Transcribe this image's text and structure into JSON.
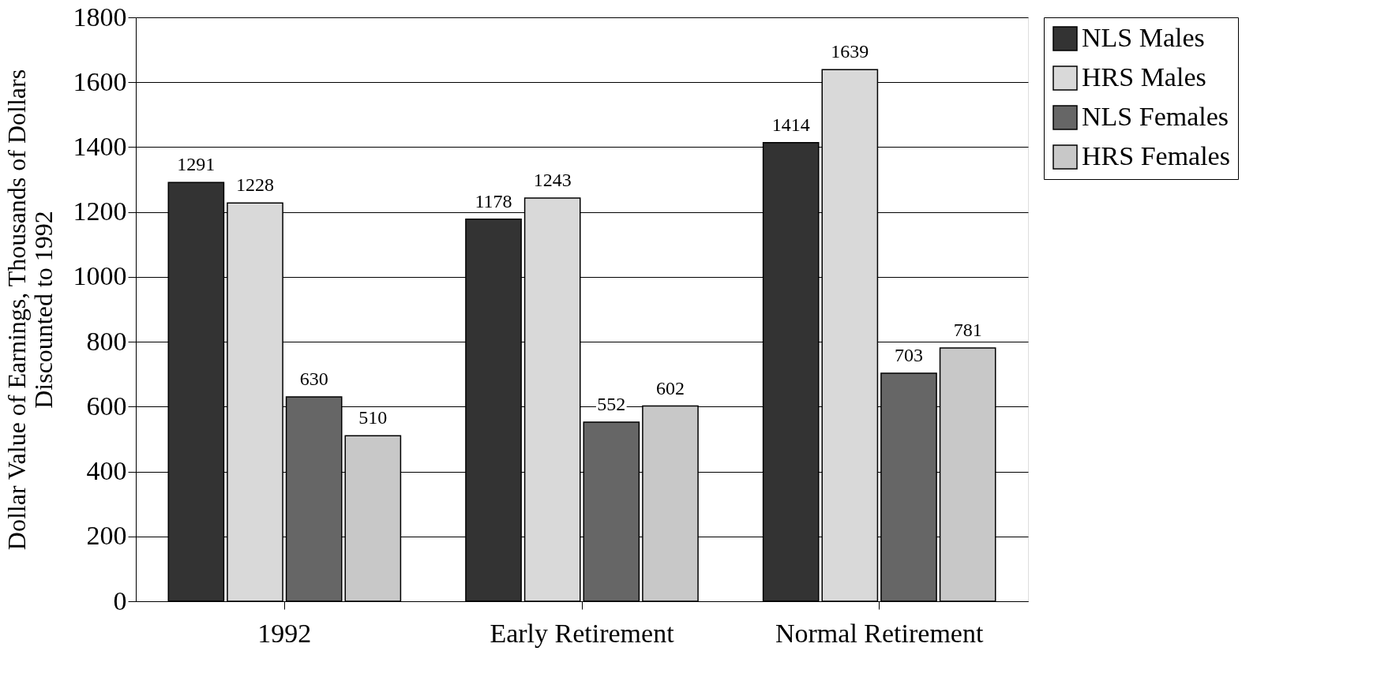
{
  "chart_data": {
    "type": "bar",
    "ylabel": "Dollar Value of Earnings, Thousands of Dollars\nDiscounted to 1992",
    "categories": [
      "1992",
      "Early Retirement",
      "Normal Retirement"
    ],
    "series": [
      {
        "name": "NLS Males",
        "color": "#333333",
        "values": [
          1291,
          1178,
          1414
        ]
      },
      {
        "name": "HRS Males",
        "color": "#d9d9d9",
        "values": [
          1228,
          1243,
          1639
        ]
      },
      {
        "name": "NLS Females",
        "color": "#666666",
        "values": [
          630,
          552,
          703
        ]
      },
      {
        "name": "HRS Females",
        "color": "#c8c8c8",
        "values": [
          510,
          602,
          781
        ]
      }
    ],
    "ylim": [
      0,
      1800
    ],
    "yticks": [
      0,
      200,
      400,
      600,
      800,
      1000,
      1200,
      1400,
      1600,
      1800
    ],
    "grid": "y",
    "legend": "right",
    "data_labels": true
  }
}
